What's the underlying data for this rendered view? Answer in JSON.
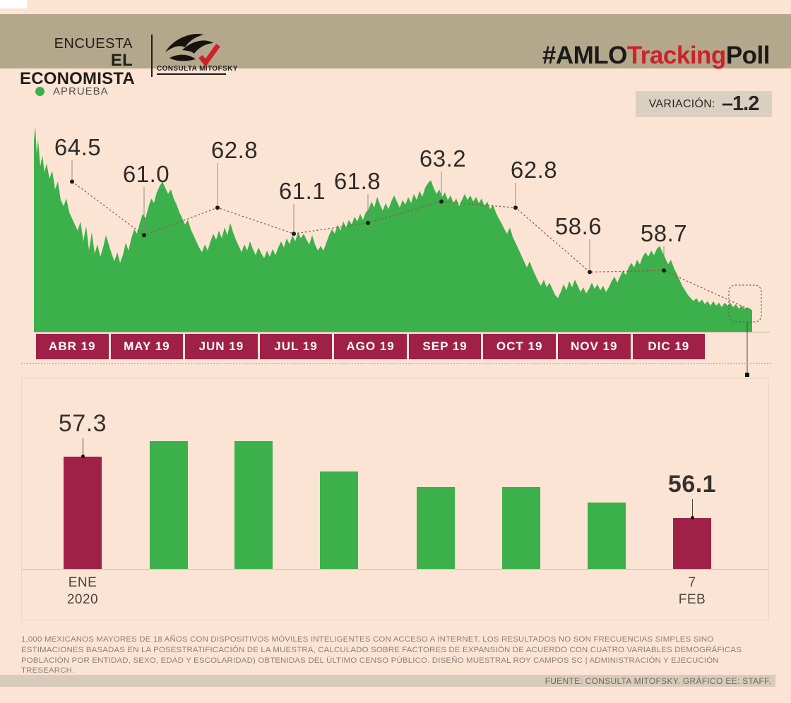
{
  "header": {
    "kicker": "ENCUESTA",
    "brand": "EL ECONOMISTA",
    "logo_caption": "CONSULTA MITOFSKY",
    "hashtag": {
      "part1": "#AMLO",
      "part2": "Tracking",
      "part3": "Poll"
    }
  },
  "legend": {
    "label": "APRUEBA"
  },
  "variation": {
    "label": "VARIACIÓN:",
    "value": "–1.2"
  },
  "colors": {
    "green": "#3cb04a",
    "maroon": "#a02148",
    "background": "#fce4d4",
    "header_tan": "#b3a88b",
    "badge_tan": "#dad0c1",
    "strip_tan": "#d9cbbb",
    "ink": "#2f2b27",
    "muted": "#8b8076",
    "hashtag_red": "#d0202a",
    "trend_line": "#96544c"
  },
  "chart_data": [
    {
      "type": "area",
      "title": "APRUEBA — daily tracking with monthly averages",
      "legend": [
        "APRUEBA"
      ],
      "categories": [
        "ABR 19",
        "MAY 19",
        "JUN 19",
        "JUL 19",
        "AGO 19",
        "SEP 19",
        "OCT 19",
        "NOV 19",
        "DIC 19"
      ],
      "monthly_average_labels": [
        "64.5",
        "61.0",
        "62.8",
        "61.1",
        "61.8",
        "63.2",
        "62.8",
        "58.6",
        "58.7"
      ],
      "monthly_average_values": [
        64.5,
        61.0,
        62.8,
        61.1,
        61.8,
        63.2,
        62.8,
        58.6,
        58.7
      ],
      "ylim": [
        54.7,
        68.5
      ],
      "grid": false,
      "profile_points_x_value": [
        48,
        67.2,
        50,
        68.1,
        52,
        66.3,
        54,
        67.2,
        57,
        65.5,
        60,
        66.2,
        63,
        65.1,
        66,
        65.7,
        70,
        64.7,
        74,
        65.2,
        78,
        64.0,
        82,
        64.5,
        86,
        63.3,
        90,
        62.9,
        94,
        63.4,
        98,
        62.5,
        102,
        62.1,
        106,
        61.7,
        110,
        61.3,
        114,
        61.9,
        118,
        60.6,
        122,
        61.6,
        126,
        60.0,
        130,
        61.2,
        134,
        59.8,
        138,
        60.4,
        142,
        59.6,
        146,
        60.2,
        150,
        61.0,
        154,
        60.4,
        158,
        59.8,
        162,
        59.3,
        166,
        59.9,
        170,
        59.2,
        174,
        59.7,
        178,
        60.5,
        182,
        60.0,
        186,
        60.8,
        190,
        61.4,
        194,
        61.1,
        198,
        61.8,
        202,
        62.4,
        206,
        62.1,
        210,
        62.8,
        214,
        63.4,
        218,
        63.1,
        222,
        63.8,
        226,
        64.2,
        230,
        64.5,
        234,
        64.1,
        238,
        63.7,
        242,
        64.0,
        246,
        63.4,
        250,
        63.0,
        254,
        62.5,
        258,
        62.1,
        262,
        61.7,
        266,
        62.0,
        270,
        61.4,
        274,
        61.0,
        278,
        60.6,
        282,
        60.2,
        286,
        59.9,
        290,
        60.4,
        294,
        60.0,
        298,
        60.6,
        302,
        61.1,
        306,
        60.7,
        310,
        61.3,
        314,
        60.8,
        318,
        61.5,
        322,
        61.0,
        326,
        61.8,
        330,
        61.2,
        334,
        60.7,
        338,
        60.3,
        342,
        59.9,
        346,
        60.4,
        350,
        60.0,
        354,
        60.6,
        358,
        60.1,
        362,
        59.7,
        366,
        60.2,
        370,
        59.8,
        374,
        59.5,
        378,
        60.0,
        382,
        59.6,
        386,
        60.1,
        390,
        59.7,
        394,
        60.2,
        398,
        60.6,
        402,
        60.2,
        406,
        60.8,
        410,
        60.4,
        414,
        61.0,
        418,
        60.6,
        422,
        61.2,
        426,
        60.8,
        430,
        61.1,
        434,
        60.7,
        438,
        60.4,
        442,
        61.0,
        446,
        60.4,
        450,
        60.0,
        454,
        60.3,
        458,
        60.0,
        462,
        60.5,
        466,
        61.0,
        470,
        61.4,
        474,
        61.1,
        478,
        61.7,
        482,
        61.3,
        486,
        61.9,
        490,
        61.5,
        494,
        62.0,
        498,
        61.7,
        502,
        62.2,
        506,
        61.9,
        510,
        62.4,
        514,
        62.0,
        518,
        62.5,
        522,
        62.7,
        526,
        63.2,
        530,
        62.8,
        534,
        63.5,
        538,
        63.0,
        542,
        62.6,
        546,
        63.1,
        550,
        62.7,
        554,
        63.2,
        558,
        63.6,
        562,
        63.2,
        566,
        62.8,
        570,
        63.3,
        574,
        63.0,
        578,
        63.5,
        582,
        63.1,
        586,
        63.7,
        590,
        63.3,
        594,
        63.9,
        598,
        63.5,
        602,
        64.1,
        606,
        64.4,
        610,
        64.6,
        614,
        64.1,
        618,
        63.7,
        622,
        64.0,
        626,
        63.5,
        630,
        63.8,
        634,
        63.3,
        638,
        63.6,
        642,
        63.1,
        646,
        63.4,
        650,
        62.9,
        654,
        63.3,
        658,
        63.7,
        662,
        63.3,
        666,
        63.6,
        670,
        63.2,
        674,
        63.5,
        678,
        63.1,
        682,
        63.4,
        686,
        62.9,
        690,
        63.2,
        694,
        62.7,
        698,
        63.0,
        702,
        62.5,
        706,
        62.1,
        710,
        61.8,
        714,
        61.4,
        718,
        61.1,
        722,
        61.5,
        726,
        60.9,
        730,
        60.5,
        734,
        60.1,
        738,
        59.7,
        742,
        59.3,
        746,
        58.9,
        750,
        59.3,
        754,
        58.8,
        758,
        58.4,
        762,
        58.0,
        766,
        57.7,
        770,
        58.1,
        774,
        57.6,
        778,
        57.9,
        782,
        57.5,
        786,
        57.1,
        790,
        56.9,
        794,
        57.3,
        798,
        57.8,
        802,
        57.4,
        806,
        58.0,
        810,
        57.6,
        814,
        58.1,
        818,
        57.7,
        822,
        57.3,
        826,
        57.6,
        830,
        57.2,
        834,
        57.5,
        838,
        57.9,
        842,
        57.5,
        846,
        57.8,
        850,
        57.4,
        854,
        57.7,
        858,
        57.3,
        862,
        57.6,
        866,
        58.0,
        870,
        58.3,
        874,
        57.9,
        878,
        58.3,
        882,
        58.7,
        886,
        58.4,
        890,
        58.9,
        894,
        59.2,
        898,
        58.9,
        902,
        59.4,
        906,
        59.1,
        910,
        59.6,
        914,
        59.9,
        918,
        59.6,
        922,
        60.0,
        926,
        59.7,
        930,
        60.1,
        934,
        60.3,
        938,
        59.9,
        942,
        59.5,
        946,
        59.1,
        950,
        59.4,
        954,
        58.9,
        958,
        58.5,
        962,
        58.1,
        966,
        57.7,
        970,
        57.4,
        974,
        57.1,
        978,
        56.9,
        982,
        56.7,
        986,
        56.9,
        990,
        56.6,
        994,
        56.8,
        998,
        56.5,
        1002,
        56.7,
        1006,
        56.4,
        1010,
        56.7,
        1014,
        56.4,
        1018,
        56.6,
        1022,
        56.3,
        1026,
        56.6,
        1030,
        56.4,
        1034,
        56.6,
        1038,
        56.3,
        1042,
        56.5,
        1046,
        56.2,
        1050,
        56.4,
        1054,
        56.2,
        1058,
        56.3,
        1062,
        56.2,
        1065,
        56.1
      ]
    },
    {
      "type": "bar",
      "title": "Daily/weekly detail ENE 2020 – 7 FEB",
      "values": [
        57.3,
        57.6,
        57.6,
        57.0,
        56.7,
        56.7,
        56.4,
        56.1
      ],
      "bar_color_names": [
        "maroon",
        "green",
        "green",
        "green",
        "green",
        "green",
        "green",
        "maroon"
      ],
      "first_bar_label": "57.3",
      "last_bar_label": "56.1",
      "first_category_lines": [
        "ENE",
        "2020"
      ],
      "last_category_lines": [
        "7",
        "FEB"
      ],
      "ylim": [
        55.1,
        58.0
      ],
      "grid": false
    }
  ],
  "footer": {
    "methodology": "1,000 MEXICANOS MAYORES DE 18 AÑOS CON DISPOSITIVOS MÓVILES INTELIGENTES CON ACCESO A INTERNET. LOS RESULTADOS NO SON FRECUENCIAS SIMPLES SINO ESTIMACIONES BASADAS EN LA POSESTRATIFICACIÓN DE LA MUESTRA, CALCULADO SOBRE FACTORES DE EXPANSIÓN DE ACUERDO CON CUATRO VARIABLES DEMOGRÁFICAS POBLACIÓN POR ENTIDAD, SEXO, EDAD Y ESCOLARIDAD) OBTENIDAS DEL ÚLTIMO CENSO PÚBLICO. DISEÑO MUESTRAL ROY CAMPOS SC | ADMINISTRACIÓN Y EJECUCIÓN TRESEARCH.",
    "source": "FUENTE: CONSULTA MITOFSKY. GRÁFICO EE: STAFF."
  }
}
